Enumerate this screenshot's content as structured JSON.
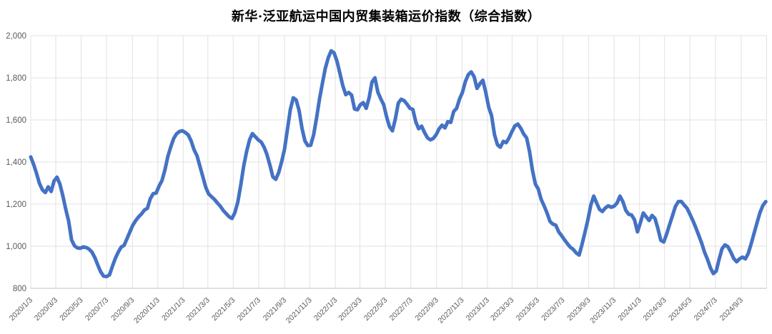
{
  "title": "新华·泛亚航运中国内贸集装箱运价指数（综合指数）",
  "chart_data": {
    "type": "line",
    "title": "新华·泛亚航运中国内贸集装箱运价指数（综合指数）",
    "legend": "none",
    "grid": true,
    "background": "#FFFFFF",
    "gridline_color": "#E2E2E2",
    "axis_line_color": "#BFBFBF",
    "y_axis": {
      "min": 800,
      "max": 2000,
      "tick_values": [
        2000,
        1800,
        1600,
        1400,
        1200,
        1000,
        800
      ],
      "tick_labels": [
        "2,000",
        "1,800",
        "1,600",
        "1,400",
        "1,200",
        "1,000",
        "800"
      ],
      "label_color": "#595959"
    },
    "x_axis": {
      "label_color": "#595959",
      "rotation_deg": -45,
      "max_day": 1766,
      "labels": [
        "2020/1/3",
        "2020/3/3",
        "2020/5/3",
        "2020/7/3",
        "2020/9/3",
        "2020/11/3",
        "2021/1/3",
        "2021/3/3",
        "2021/5/3",
        "2021/7/3",
        "2021/9/3",
        "2021/11/3",
        "2022/1/3",
        "2022/3/3",
        "2022/5/3",
        "2022/7/3",
        "2022/9/3",
        "2022/11/3",
        "2023/1/3",
        "2023/3/3",
        "2023/5/3",
        "2023/7/3",
        "2023/9/3",
        "2023/11/3",
        "2024/1/3",
        "2024/3/3",
        "2024/5/3",
        "2024/7/3",
        "2024/9/3"
      ],
      "label_days": [
        0,
        60,
        121,
        182,
        244,
        305,
        366,
        425,
        486,
        547,
        609,
        670,
        731,
        790,
        851,
        912,
        974,
        1035,
        1096,
        1155,
        1216,
        1277,
        1339,
        1400,
        1461,
        1521,
        1582,
        1643,
        1705
      ],
      "gridline_days": [
        0,
        60,
        121,
        182,
        244,
        305,
        366,
        425,
        486,
        547,
        609,
        670,
        731,
        790,
        851,
        912,
        974,
        1035,
        1096,
        1155,
        1216,
        1277,
        1339,
        1400,
        1461,
        1521,
        1582,
        1643,
        1705,
        1766
      ]
    },
    "series": [
      {
        "name": "综合指数",
        "color": "#4472C4",
        "stroke_width": 5,
        "start_date": "2020/1/3",
        "start_day": 0,
        "step_days": 7,
        "values": [
          1424,
          1388,
          1345,
          1298,
          1268,
          1255,
          1282,
          1260,
          1310,
          1328,
          1295,
          1240,
          1175,
          1120,
          1030,
          1002,
          992,
          990,
          997,
          994,
          986,
          972,
          945,
          910,
          878,
          858,
          856,
          864,
          905,
          942,
          972,
          996,
          1004,
          1036,
          1068,
          1100,
          1122,
          1140,
          1154,
          1172,
          1180,
          1226,
          1250,
          1253,
          1286,
          1312,
          1362,
          1426,
          1472,
          1512,
          1534,
          1545,
          1548,
          1540,
          1528,
          1500,
          1458,
          1430,
          1380,
          1330,
          1280,
          1248,
          1235,
          1222,
          1205,
          1190,
          1170,
          1155,
          1140,
          1132,
          1160,
          1210,
          1290,
          1380,
          1450,
          1505,
          1535,
          1520,
          1505,
          1495,
          1470,
          1435,
          1385,
          1330,
          1318,
          1350,
          1400,
          1460,
          1555,
          1650,
          1705,
          1695,
          1645,
          1560,
          1500,
          1478,
          1480,
          1530,
          1610,
          1700,
          1775,
          1845,
          1895,
          1928,
          1918,
          1878,
          1820,
          1762,
          1720,
          1730,
          1718,
          1652,
          1648,
          1672,
          1682,
          1655,
          1705,
          1780,
          1800,
          1732,
          1700,
          1672,
          1615,
          1568,
          1548,
          1605,
          1680,
          1698,
          1692,
          1675,
          1655,
          1650,
          1590,
          1558,
          1570,
          1540,
          1515,
          1505,
          1512,
          1530,
          1558,
          1575,
          1562,
          1592,
          1588,
          1640,
          1655,
          1700,
          1730,
          1782,
          1815,
          1828,
          1805,
          1750,
          1772,
          1788,
          1730,
          1660,
          1620,
          1530,
          1482,
          1470,
          1498,
          1492,
          1515,
          1545,
          1572,
          1580,
          1560,
          1533,
          1515,
          1450,
          1360,
          1295,
          1272,
          1222,
          1192,
          1158,
          1118,
          1105,
          1100,
          1068,
          1050,
          1030,
          1012,
          995,
          985,
          968,
          958,
          1010,
          1065,
          1125,
          1195,
          1238,
          1205,
          1175,
          1165,
          1182,
          1192,
          1185,
          1190,
          1205,
          1238,
          1212,
          1170,
          1152,
          1148,
          1125,
          1068,
          1112,
          1158,
          1140,
          1122,
          1146,
          1132,
          1085,
          1028,
          1020,
          1058,
          1102,
          1145,
          1188,
          1212,
          1213,
          1196,
          1180,
          1152,
          1122,
          1088,
          1052,
          1015,
          972,
          938,
          898,
          870,
          882,
          938,
          988,
          1006,
          998,
          972,
          942,
          926,
          940,
          948,
          940,
          966,
          1012,
          1062,
          1112,
          1160,
          1194,
          1212
        ]
      }
    ]
  }
}
